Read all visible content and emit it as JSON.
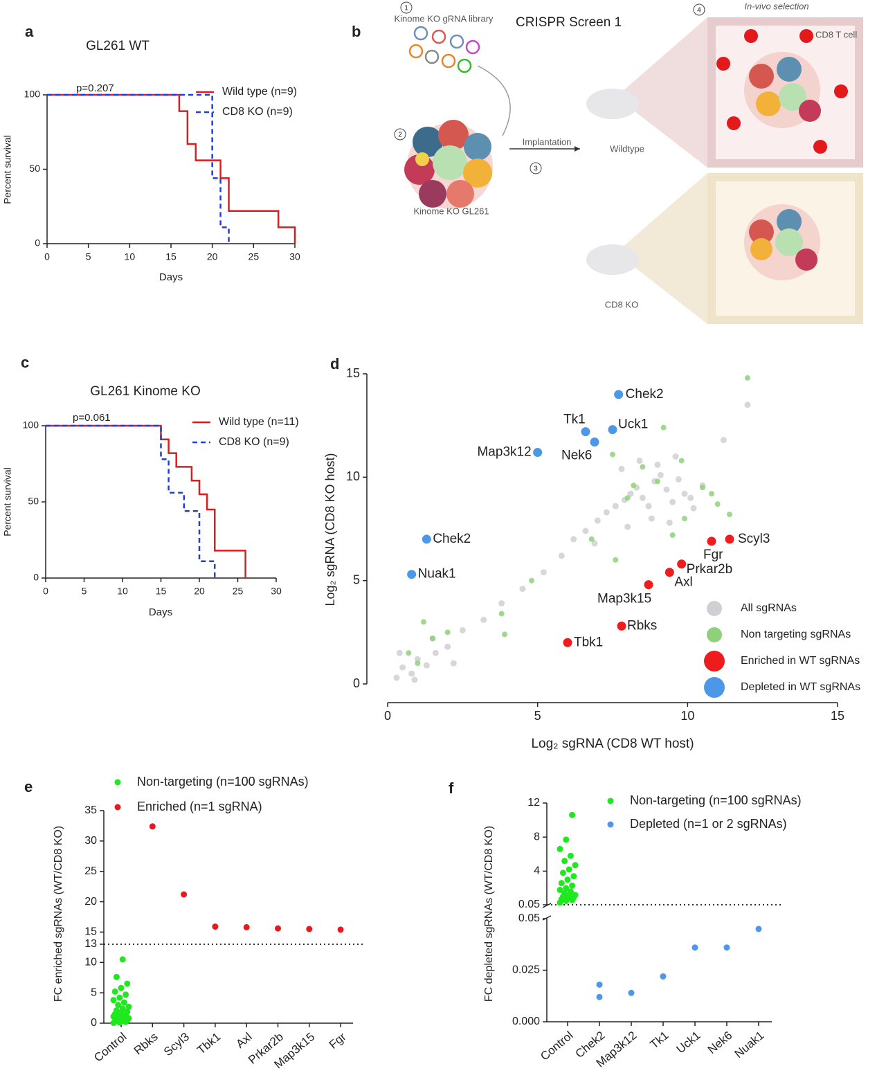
{
  "chart_data": [
    {
      "type": "line",
      "panel_label": "a",
      "title": "GL261 WT",
      "annotation": "p=0.207",
      "x_label": "Days",
      "y_label": "Percent survival",
      "xlim": [
        0,
        30
      ],
      "xticks": [
        0,
        5,
        10,
        15,
        20,
        25,
        30
      ],
      "ylim": [
        0,
        100
      ],
      "yticks": [
        0,
        50,
        100
      ],
      "grid": false,
      "series": [
        {
          "name": "Wild type (n=9)",
          "color": "#e3191c",
          "dashed": false,
          "x": [
            0,
            16,
            16,
            17,
            17,
            18,
            18,
            21,
            21,
            22,
            22,
            28,
            28,
            30,
            30
          ],
          "values": [
            100,
            100,
            89,
            89,
            67,
            67,
            56,
            56,
            44,
            44,
            22,
            22,
            11,
            11,
            0
          ]
        },
        {
          "name": "CD8 KO (n=9)",
          "color": "#1f3fd6",
          "dashed": true,
          "x": [
            0,
            20,
            20,
            21,
            21,
            22,
            22
          ],
          "values": [
            100,
            100,
            44,
            44,
            11,
            11,
            0
          ]
        }
      ]
    },
    {
      "type": "line",
      "panel_label": "c",
      "title": "GL261 Kinome KO",
      "annotation": "p=0.061",
      "x_label": "Days",
      "y_label": "Percent survival",
      "xlim": [
        0,
        30
      ],
      "xticks": [
        0,
        5,
        10,
        15,
        20,
        25,
        30
      ],
      "ylim": [
        0,
        100
      ],
      "yticks": [
        0,
        50,
        100
      ],
      "grid": false,
      "series": [
        {
          "name": "Wild type (n=11)",
          "color": "#e3191c",
          "dashed": false,
          "x": [
            0,
            15,
            15,
            16,
            16,
            17,
            17,
            19,
            19,
            20,
            20,
            21,
            21,
            22,
            22,
            26,
            26
          ],
          "values": [
            100,
            100,
            91,
            91,
            82,
            82,
            73,
            73,
            64,
            64,
            55,
            55,
            45,
            45,
            18,
            18,
            0
          ]
        },
        {
          "name": "CD8 KO (n=9)",
          "color": "#1f3fd6",
          "dashed": true,
          "x": [
            0,
            15,
            15,
            16,
            16,
            18,
            18,
            20,
            20,
            22,
            22
          ],
          "values": [
            100,
            100,
            78,
            78,
            56,
            56,
            44,
            44,
            11,
            11,
            0
          ]
        }
      ]
    },
    {
      "type": "scatter",
      "panel_label": "d",
      "x_label": "Log₂ sgRNA (CD8 WT host)",
      "y_label": "Log₂ sgRNA (CD8 KO host)",
      "xlim": [
        0,
        15
      ],
      "xticks": [
        0,
        5,
        10,
        15
      ],
      "ylim": [
        0,
        15
      ],
      "yticks": [
        0,
        5,
        10,
        15
      ],
      "grid": false,
      "series": [
        {
          "name": "All sgRNAs",
          "color": "#cfd0d3",
          "x": [
            0.3,
            0.5,
            0.8,
            1.0,
            1.3,
            1.6,
            2.0,
            2.5,
            3.2,
            3.8,
            4.5,
            5.2,
            5.8,
            6.2,
            6.6,
            7.0,
            7.3,
            7.6,
            7.9,
            8.1,
            8.3,
            8.5,
            8.7,
            8.9,
            9.1,
            9.3,
            9.5,
            9.7,
            9.9,
            10.2,
            10.5,
            7.8,
            8.4,
            9.0,
            9.6,
            10.1,
            6.9,
            8.0,
            8.8,
            9.4,
            12.0,
            11.2,
            0.4,
            0.9,
            1.5,
            2.2
          ],
          "values": [
            0.3,
            0.8,
            0.5,
            1.2,
            0.9,
            1.5,
            1.8,
            2.6,
            3.1,
            3.9,
            4.6,
            5.4,
            6.2,
            7.0,
            7.4,
            7.9,
            8.3,
            8.6,
            8.9,
            9.2,
            9.5,
            9.0,
            8.6,
            9.8,
            10.1,
            9.4,
            8.8,
            9.9,
            9.2,
            8.5,
            9.6,
            10.4,
            10.8,
            10.6,
            11.0,
            9.0,
            6.8,
            7.6,
            8.0,
            7.8,
            13.5,
            11.8,
            1.5,
            0.2,
            2.2,
            1.0
          ]
        },
        {
          "name": "Non targeting sgRNAs",
          "color": "#8fd17a",
          "x": [
            12.0,
            9.2,
            7.5,
            8.5,
            9.0,
            9.8,
            10.5,
            11.4,
            8.0,
            6.8,
            1.2,
            1.5,
            2.0,
            3.8,
            3.9,
            7.6,
            9.5,
            10.8,
            11.0,
            0.7,
            1.0,
            4.8,
            8.2,
            9.9
          ],
          "values": [
            14.8,
            12.4,
            11.1,
            10.5,
            9.8,
            10.8,
            9.5,
            8.2,
            9.0,
            7.0,
            3.0,
            2.2,
            2.5,
            3.4,
            2.4,
            6.0,
            7.2,
            9.2,
            8.7,
            1.5,
            1.0,
            5.0,
            9.6,
            8.0
          ]
        },
        {
          "name": "Enriched in WT  sgRNAs",
          "color": "#ee1c1c",
          "labels": [
            "Scyl3",
            "Fgr",
            "Prkar2b",
            "Axl",
            "Map3k15",
            "Rbks",
            "Tbk1"
          ],
          "x": [
            11.4,
            10.8,
            9.8,
            9.4,
            8.7,
            7.8,
            6.0
          ],
          "values": [
            7.0,
            6.9,
            5.8,
            5.4,
            4.8,
            2.8,
            2.0
          ]
        },
        {
          "name": "Depleted in WT  sgRNAs",
          "color": "#4d97e8",
          "labels": [
            "Chek2",
            "Tk1",
            "Uck1",
            "Nek6",
            "Map3k12",
            "Chek2",
            "Nuak1"
          ],
          "x": [
            7.7,
            6.6,
            7.5,
            6.9,
            5.0,
            1.3,
            0.8
          ],
          "values": [
            14.0,
            12.2,
            12.3,
            11.7,
            11.2,
            7.0,
            5.3
          ]
        }
      ]
    },
    {
      "type": "strip",
      "panel_label": "e",
      "y_label": "FC enriched sgRNAs (WT/CD8 KO)",
      "categories": [
        "Control",
        "Rbks",
        "Scyl3",
        "Tbk1",
        "Axl",
        "Prkar2b",
        "Map3k15",
        "Fgr"
      ],
      "ylim": [
        0,
        35
      ],
      "yticks": [
        0,
        5,
        10,
        13,
        15,
        20,
        25,
        30,
        35
      ],
      "hline": 13,
      "series": [
        {
          "name": "Non-targeting (n=100 sgRNAs)",
          "color": "#1ee81e",
          "values": [
            [
              0.05,
              0.1,
              0.2,
              0.3,
              0.4,
              0.5,
              0.6,
              0.7,
              0.8,
              0.9,
              1.0,
              1.1,
              1.2,
              1.3,
              1.5,
              1.7,
              1.9,
              2.1,
              2.4,
              2.7,
              3.0,
              3.4,
              3.8,
              4.2,
              4.7,
              5.2,
              5.8,
              6.5,
              7.6,
              10.5
            ],
            null,
            null,
            null,
            null,
            null,
            null,
            null
          ]
        },
        {
          "name": "Enriched (n=1 sgRNA)",
          "color": "#e8191c",
          "values": [
            null,
            [
              32.4
            ],
            [
              21.2
            ],
            [
              15.9
            ],
            [
              15.8
            ],
            [
              15.6
            ],
            [
              15.5
            ],
            [
              15.4
            ]
          ]
        }
      ]
    },
    {
      "type": "strip",
      "panel_label": "f",
      "y_label": "FC depleted sgRNAs (WT/CD8 KO)",
      "categories": [
        "Control",
        "Chek2",
        "Map3k12",
        "Tk1",
        "Uck1",
        "Nek6",
        "Nuak1"
      ],
      "ylim": [
        0,
        0.05
      ],
      "yticks": [
        {
          "value": 0,
          "label": "0.000"
        },
        0.025,
        0.05
      ],
      "ylim_upper": [
        0.05,
        12
      ],
      "yticks_upper": [
        0.05,
        4,
        8,
        12
      ],
      "hline": 0.05,
      "series": [
        {
          "name": "Non-targeting (n=100 sgRNAs)",
          "color": "#1ee81e",
          "axis": "upper",
          "values": [
            [
              0.3,
              0.5,
              0.6,
              0.7,
              0.8,
              0.9,
              1.0,
              1.1,
              1.2,
              1.4,
              1.6,
              1.8,
              2.0,
              2.3,
              2.6,
              3.0,
              3.4,
              3.8,
              4.2,
              4.7,
              5.2,
              5.8,
              6.6,
              7.7,
              10.6
            ],
            null,
            null,
            null,
            null,
            null,
            null
          ]
        },
        {
          "name": "Depleted (n=1 or 2 sgRNAs)",
          "color": "#4d97e8",
          "values": [
            null,
            [
              0.018,
              0.012
            ],
            [
              0.014
            ],
            [
              0.022
            ],
            [
              0.036
            ],
            [
              0.036
            ],
            [
              0.045
            ]
          ]
        }
      ]
    }
  ],
  "diagram": {
    "label": "b",
    "title": "CRISPR Screen 1",
    "library": "Kinome KO gRNA library",
    "tumor": "Kinome KO GL261",
    "arrow": "Implantation",
    "wildtype": "Wildtype",
    "knockout": "CD8 KO",
    "selection": "In-vivo selection",
    "t_cell": "CD8 T cell",
    "steps": [
      "1",
      "2",
      "3",
      "4"
    ]
  }
}
